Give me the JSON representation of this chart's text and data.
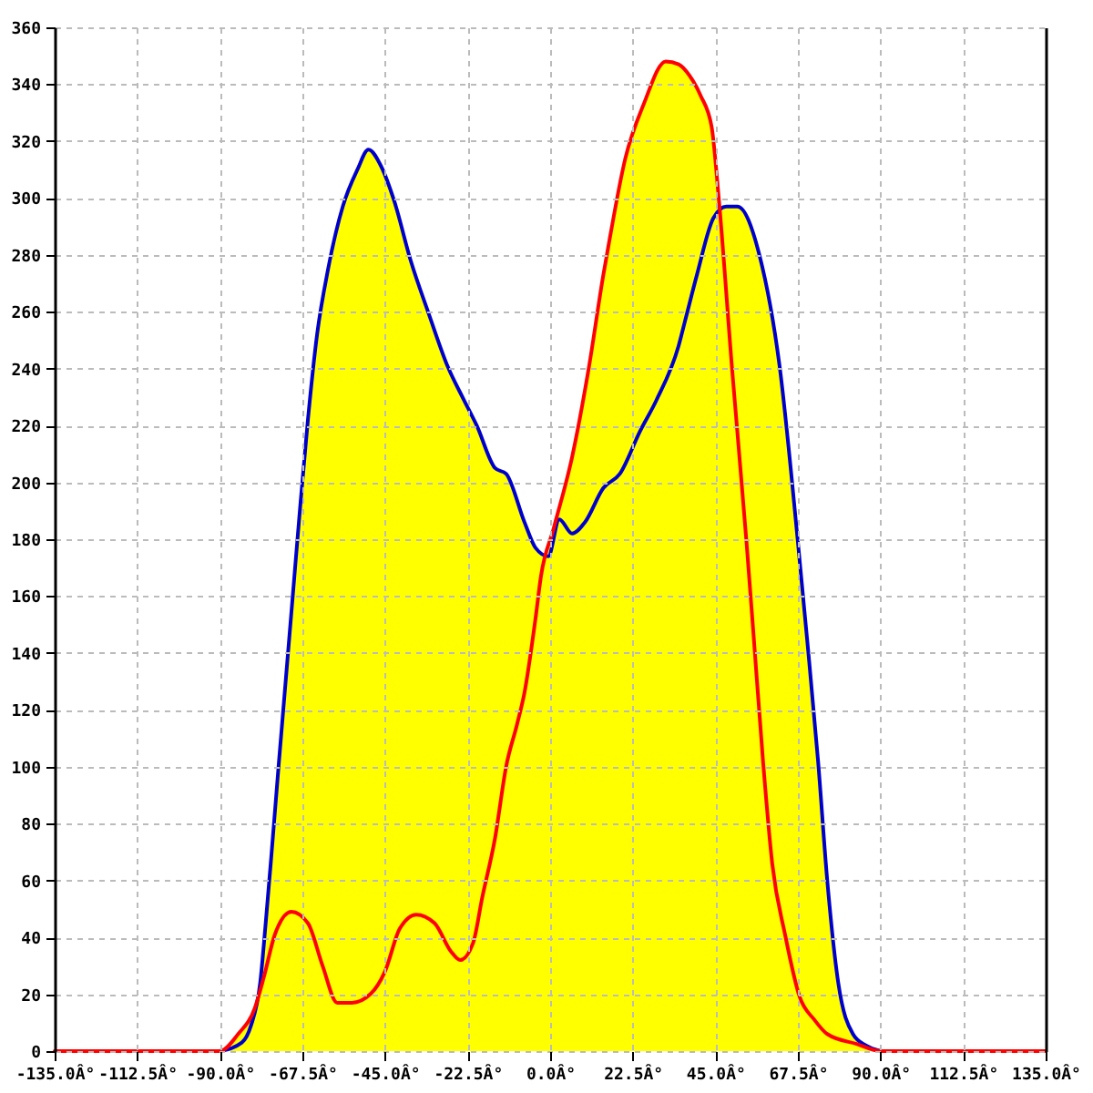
{
  "chart_data": {
    "type": "area",
    "xlim": [
      -135,
      135
    ],
    "ylim": [
      0,
      360
    ],
    "xticks": [
      {
        "value": -135,
        "label": "-135.0Â°"
      },
      {
        "value": -112.5,
        "label": "-112.5Â°"
      },
      {
        "value": -90,
        "label": "-90.0Â°"
      },
      {
        "value": -67.5,
        "label": "-67.5Â°"
      },
      {
        "value": -45,
        "label": "-45.0Â°"
      },
      {
        "value": -22.5,
        "label": "-22.5Â°"
      },
      {
        "value": 0,
        "label": "0.0Â°"
      },
      {
        "value": 22.5,
        "label": "22.5Â°"
      },
      {
        "value": 45,
        "label": "45.0Â°"
      },
      {
        "value": 67.5,
        "label": "67.5Â°"
      },
      {
        "value": 90,
        "label": "90.0Â°"
      },
      {
        "value": 112.5,
        "label": "112.5Â°"
      },
      {
        "value": 135,
        "label": "135.0Â°"
      }
    ],
    "yticks": [
      0,
      20,
      40,
      60,
      80,
      100,
      120,
      140,
      160,
      180,
      200,
      220,
      240,
      260,
      280,
      300,
      320,
      340,
      360
    ],
    "grid": true,
    "series": [
      {
        "color": "#ffff00",
        "x": [
          -90,
          -85,
          -80.5,
          -79,
          -77.5,
          -76,
          -74,
          -72,
          -70,
          -68,
          -66,
          -63.5,
          -60.5,
          -56.5,
          -52.5,
          -49.5,
          -46,
          -42.5,
          -38,
          -33,
          -28,
          -23.5,
          -20,
          -15,
          -12,
          -7,
          -4,
          -1,
          1,
          6,
          10.5,
          14.5,
          16,
          20.5,
          25.5,
          31.5,
          35,
          38,
          41,
          44,
          46.2,
          48,
          51,
          57,
          62.5,
          67.5,
          70,
          73,
          75.5,
          78.5,
          82.5,
          86,
          90
        ],
        "values": [
          0,
          6,
          15,
          24,
          45,
          68,
          100,
          131,
          162,
          193,
          222,
          252,
          275,
          297,
          310,
          317,
          311,
          299,
          278,
          259,
          241,
          229,
          220,
          205,
          203,
          186,
          177,
          175,
          184,
          209,
          240,
          273,
          284,
          314,
          333,
          348,
          347,
          343,
          336,
          325,
          295,
          297,
          297,
          280,
          241,
          179,
          145,
          102,
          60,
          24,
          6,
          2,
          0
        ]
      },
      {
        "type": "line",
        "color": "#0000cc",
        "x": [
          -90,
          -84,
          -81.5,
          -79,
          -77.5,
          -76,
          -74,
          -72,
          -70,
          -68,
          -66,
          -63.5,
          -60.5,
          -56.5,
          -52.5,
          -49.5,
          -46,
          -42.5,
          -38,
          -33,
          -28,
          -23.5,
          -20,
          -15,
          -12,
          -7,
          -4,
          -0.5,
          2.5,
          6,
          9.5,
          14.5,
          19,
          24.5,
          29,
          35,
          37,
          40,
          44.5,
          48,
          51,
          57,
          62.5,
          67.5,
          70,
          73,
          75.5,
          78.5,
          82.5,
          86,
          90
        ],
        "values": [
          0,
          3,
          9,
          24,
          45,
          68,
          100,
          131,
          162,
          193,
          222,
          252,
          275,
          297,
          310,
          317,
          311,
          299,
          278,
          259,
          241,
          229,
          220,
          205,
          203,
          186,
          177,
          174,
          187,
          182,
          186,
          198,
          203,
          218,
          229,
          248,
          258,
          273,
          293,
          297,
          297,
          280,
          241,
          179,
          145,
          102,
          60,
          24,
          6,
          2,
          0
        ]
      },
      {
        "type": "line",
        "color": "#ff0000",
        "x": [
          -135,
          -90,
          -85,
          -80.5,
          -78,
          -75,
          -70.5,
          -66,
          -62,
          -58,
          -54,
          -49,
          -45,
          -41,
          -36.5,
          -31.5,
          -27,
          -24.5,
          -21,
          -18.5,
          -15,
          -12,
          -9,
          -7,
          -4,
          -2.5,
          1,
          6,
          10.5,
          14.5,
          16,
          20.5,
          25.5,
          31.5,
          35,
          38,
          41,
          44,
          46,
          49.5,
          53.5,
          55.5,
          58,
          60.5,
          64,
          68,
          72,
          75.5,
          83.5,
          90,
          135
        ],
        "values": [
          0,
          0,
          6,
          15,
          26,
          41,
          49,
          45,
          30,
          17,
          17,
          20,
          28,
          43,
          48,
          45,
          35,
          32,
          38,
          54,
          75,
          100,
          115,
          126,
          152,
          167,
          184,
          209,
          240,
          273,
          284,
          314,
          333,
          348,
          347,
          343,
          336,
          325,
          299,
          241,
          179,
          145,
          102,
          66,
          41,
          19,
          11,
          6,
          2.5,
          0,
          0
        ]
      }
    ]
  }
}
